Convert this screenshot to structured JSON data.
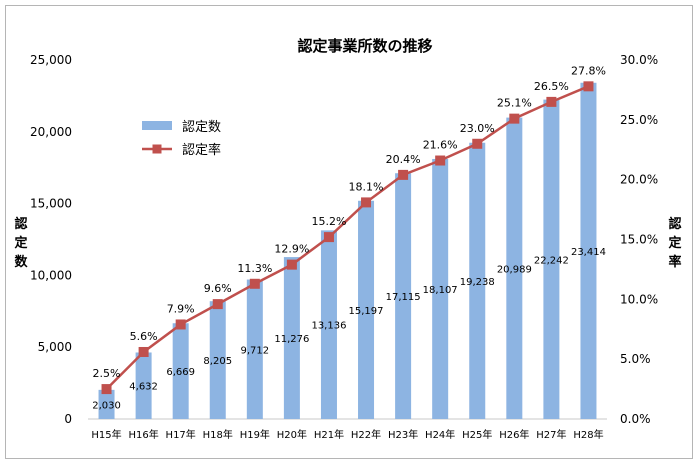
{
  "chart_data": {
    "type": "bar+line",
    "title": "認定事業所数の推移",
    "categories": [
      "H15年",
      "H16年",
      "H17年",
      "H18年",
      "H19年",
      "H20年",
      "H21年",
      "H22年",
      "H23年",
      "H24年",
      "H25年",
      "H26年",
      "H27年",
      "H28年"
    ],
    "series": [
      {
        "name": "認定数",
        "type": "bar",
        "axis": "left",
        "color": "#8db4e2",
        "values": [
          2030,
          4632,
          6669,
          8205,
          9712,
          11276,
          13136,
          15197,
          17115,
          18107,
          19238,
          20989,
          22242,
          23414
        ],
        "labels": [
          "2,030",
          "4,632",
          "6,669",
          "8,205",
          "9,712",
          "11,276",
          "13,136",
          "15,197",
          "17,115",
          "18,107",
          "19,238",
          "20,989",
          "22,242",
          "23,414"
        ]
      },
      {
        "name": "認定率",
        "type": "line",
        "axis": "right",
        "color": "#c0504d",
        "values": [
          2.5,
          5.6,
          7.9,
          9.6,
          11.3,
          12.9,
          15.2,
          18.1,
          20.4,
          21.6,
          23.0,
          25.1,
          26.5,
          27.8
        ],
        "labels": [
          "2.5%",
          "5.6%",
          "7.9%",
          "9.6%",
          "11.3%",
          "12.9%",
          "15.2%",
          "18.1%",
          "20.4%",
          "21.6%",
          "23.0%",
          "25.1%",
          "26.5%",
          "27.8%"
        ]
      }
    ],
    "y_left": {
      "label": "認定数",
      "lim": [
        0,
        25000
      ],
      "ticks": [
        0,
        5000,
        10000,
        15000,
        20000,
        25000
      ],
      "tick_labels": [
        "0",
        "5,000",
        "10,000",
        "15,000",
        "20,000",
        "25,000"
      ]
    },
    "y_right": {
      "label": "認定率",
      "lim": [
        0,
        30
      ],
      "ticks": [
        0,
        5,
        10,
        15,
        20,
        25,
        30
      ],
      "tick_labels": [
        "0.0%",
        "5.0%",
        "10.0%",
        "15.0%",
        "20.0%",
        "25.0%",
        "30.0%"
      ]
    },
    "legend": {
      "position": "top-left",
      "entries": [
        "認定数",
        "認定率"
      ]
    },
    "grid": false
  }
}
